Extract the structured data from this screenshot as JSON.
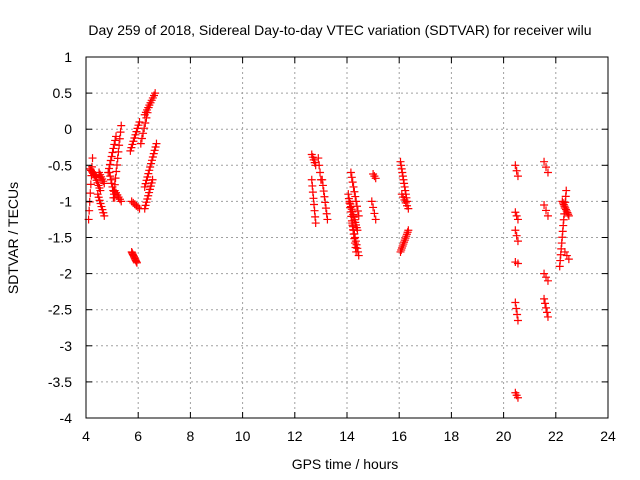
{
  "chart_data": {
    "type": "scatter",
    "title": "Day 259 of 2018, Sidereal Day-to-day VTEC variation (SDTVAR) for receiver wilu",
    "xlabel": "GPS time / hours",
    "ylabel": "SDTVAR / TECUs",
    "xlim": [
      4,
      24
    ],
    "ylim": [
      -4,
      1
    ],
    "xticks": [
      "4",
      "6",
      "8",
      "10",
      "12",
      "14",
      "16",
      "18",
      "20",
      "22",
      "24"
    ],
    "yticks": [
      "1",
      "0.5",
      "0",
      "-0.5",
      "-1",
      "-1.5",
      "-2",
      "-2.5",
      "-3",
      "-3.5",
      "-4"
    ],
    "xtick_values": [
      4,
      6,
      8,
      10,
      12,
      14,
      16,
      18,
      20,
      22,
      24
    ],
    "ytick_values": [
      1,
      0.5,
      0,
      -0.5,
      -1,
      -1.5,
      -2,
      -2.5,
      -3,
      -3.5,
      -4
    ],
    "grid": true,
    "marker": "+",
    "marker_color": "#ff0000",
    "series": [
      {
        "name": "SDTVAR",
        "tracks": [
          {
            "x0": 4.1,
            "x1": 4.25,
            "y0": -1.25,
            "y1": -0.4,
            "n": 8
          },
          {
            "x0": 4.15,
            "x1": 4.35,
            "y0": -0.55,
            "y1": -0.65,
            "n": 6
          },
          {
            "x0": 4.3,
            "x1": 4.55,
            "y0": -0.6,
            "y1": -0.85,
            "n": 8
          },
          {
            "x0": 4.45,
            "x1": 4.7,
            "y0": -0.9,
            "y1": -1.2,
            "n": 8
          },
          {
            "x0": 4.5,
            "x1": 4.7,
            "y0": -0.6,
            "y1": -0.75,
            "n": 6
          },
          {
            "x0": 4.85,
            "x1": 5.15,
            "y0": -0.6,
            "y1": -0.1,
            "n": 10
          },
          {
            "x0": 4.9,
            "x1": 5.1,
            "y0": -0.6,
            "y1": -0.95,
            "n": 8
          },
          {
            "x0": 5.05,
            "x1": 5.35,
            "y0": -0.95,
            "y1": 0.05,
            "n": 12
          },
          {
            "x0": 5.1,
            "x1": 5.35,
            "y0": -0.85,
            "y1": -1.0,
            "n": 6
          },
          {
            "x0": 5.7,
            "x1": 6.05,
            "y0": -0.3,
            "y1": 0.1,
            "n": 10
          },
          {
            "x0": 5.75,
            "x1": 5.95,
            "y0": -1.7,
            "y1": -1.85,
            "n": 10
          },
          {
            "x0": 5.75,
            "x1": 6.05,
            "y0": -1.0,
            "y1": -1.1,
            "n": 6
          },
          {
            "x0": 6.1,
            "x1": 6.4,
            "y0": -0.2,
            "y1": 0.3,
            "n": 8
          },
          {
            "x0": 6.25,
            "x1": 6.65,
            "y0": 0.2,
            "y1": 0.5,
            "n": 10
          },
          {
            "x0": 6.25,
            "x1": 6.7,
            "y0": -0.8,
            "y1": -0.2,
            "n": 14
          },
          {
            "x0": 6.25,
            "x1": 6.55,
            "y0": -1.1,
            "y1": -0.7,
            "n": 10
          },
          {
            "x0": 12.65,
            "x1": 12.8,
            "y0": -0.35,
            "y1": -0.5,
            "n": 5
          },
          {
            "x0": 12.65,
            "x1": 12.8,
            "y0": -0.7,
            "y1": -1.3,
            "n": 8
          },
          {
            "x0": 12.9,
            "x1": 13.0,
            "y0": -0.4,
            "y1": -0.7,
            "n": 4
          },
          {
            "x0": 13.05,
            "x1": 13.25,
            "y0": -0.7,
            "y1": -1.25,
            "n": 8
          },
          {
            "x0": 14.05,
            "x1": 14.35,
            "y0": -0.9,
            "y1": -1.7,
            "n": 14
          },
          {
            "x0": 14.1,
            "x1": 14.4,
            "y0": -1.0,
            "y1": -1.4,
            "n": 12
          },
          {
            "x0": 14.15,
            "x1": 14.45,
            "y0": -0.6,
            "y1": -1.2,
            "n": 10
          },
          {
            "x0": 14.2,
            "x1": 14.45,
            "y0": -1.3,
            "y1": -1.75,
            "n": 10
          },
          {
            "x0": 15.0,
            "x1": 15.1,
            "y0": -0.62,
            "y1": -0.68,
            "n": 3
          },
          {
            "x0": 14.95,
            "x1": 15.1,
            "y0": -1.0,
            "y1": -1.25,
            "n": 4
          },
          {
            "x0": 16.05,
            "x1": 16.3,
            "y0": -0.45,
            "y1": -1.0,
            "n": 12
          },
          {
            "x0": 16.1,
            "x1": 16.35,
            "y0": -0.9,
            "y1": -1.1,
            "n": 6
          },
          {
            "x0": 16.05,
            "x1": 16.35,
            "y0": -1.7,
            "y1": -1.4,
            "n": 12
          },
          {
            "x0": 20.45,
            "x1": 20.55,
            "y0": -0.5,
            "y1": -0.65,
            "n": 3
          },
          {
            "x0": 20.45,
            "x1": 20.55,
            "y0": -1.15,
            "y1": -1.25,
            "n": 3
          },
          {
            "x0": 20.45,
            "x1": 20.55,
            "y0": -1.4,
            "y1": -1.55,
            "n": 3
          },
          {
            "x0": 20.45,
            "x1": 20.55,
            "y0": -1.84,
            "y1": -1.86,
            "n": 2
          },
          {
            "x0": 20.45,
            "x1": 20.55,
            "y0": -2.4,
            "y1": -2.65,
            "n": 4
          },
          {
            "x0": 20.45,
            "x1": 20.55,
            "y0": -3.65,
            "y1": -3.72,
            "n": 3
          },
          {
            "x0": 21.55,
            "x1": 21.7,
            "y0": -0.45,
            "y1": -0.6,
            "n": 3
          },
          {
            "x0": 21.55,
            "x1": 21.7,
            "y0": -1.05,
            "y1": -1.2,
            "n": 3
          },
          {
            "x0": 21.55,
            "x1": 21.7,
            "y0": -2.0,
            "y1": -2.1,
            "n": 3
          },
          {
            "x0": 21.55,
            "x1": 21.7,
            "y0": -2.35,
            "y1": -2.6,
            "n": 5
          },
          {
            "x0": 22.15,
            "x1": 22.4,
            "y0": -1.9,
            "y1": -0.85,
            "n": 14
          },
          {
            "x0": 22.25,
            "x1": 22.5,
            "y0": -1.0,
            "y1": -1.2,
            "n": 10
          },
          {
            "x0": 22.35,
            "x1": 22.5,
            "y0": -1.7,
            "y1": -1.8,
            "n": 3
          }
        ]
      }
    ]
  }
}
